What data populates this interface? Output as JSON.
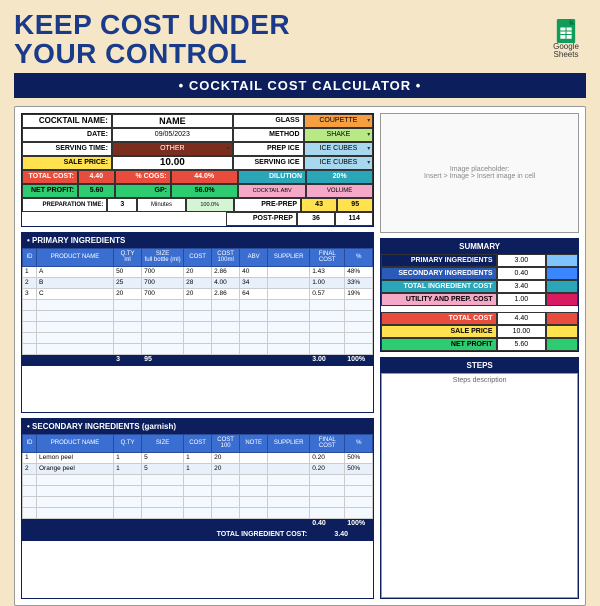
{
  "title_line1": "KEEP COST UNDER",
  "title_line2": "YOUR CONTROL",
  "sheets_label1": "Google",
  "sheets_label2": "Sheets",
  "subtitle": "• COCKTAIL COST CALCULATOR •",
  "header": {
    "cocktail_name_lbl": "COCKTAIL NAME:",
    "cocktail_name": "NAME",
    "date_lbl": "DATE:",
    "date": "09/05/2023",
    "serving_time_lbl": "SERVING TIME:",
    "serving_time": "OTHER",
    "sale_price_lbl": "SALE PRICE:",
    "sale_price": "10.00",
    "total_cost_lbl": "TOTAL COST:",
    "total_cost": "4.40",
    "cogs_lbl": "% COGS:",
    "cogs": "44.0%",
    "net_profit_lbl": "NET PROFIT:",
    "net_profit": "5.60",
    "gp_lbl": "GP:",
    "gp": "56.0%",
    "prep_time_lbl": "PREPARATION TIME:",
    "prep_time": "3",
    "prep_unit": "Minutes",
    "prep_pct": "100.0%",
    "glass_lbl": "GLASS",
    "glass": "COUPETTE",
    "method_lbl": "METHOD",
    "method": "SHAKE",
    "prep_ice_lbl": "PREP ICE",
    "prep_ice": "ICE CUBES",
    "serving_ice_lbl": "SERVING ICE",
    "serving_ice": "ICE CUBES",
    "dilution_lbl": "DILUTION",
    "dilution": "20%",
    "cocktail_abv_lbl": "COCKTAIL ABV",
    "volume_lbl": "VOLUME",
    "pre_prep_lbl": "PRE-PREP",
    "pre_prep_abv": "43",
    "pre_prep_vol": "95",
    "post_prep_lbl": "POST-PREP",
    "post_prep_abv": "36",
    "post_prep_vol": "114"
  },
  "colors": {
    "yellow": "#ffe24d",
    "red": "#e74c3c",
    "green": "#2ecc71",
    "orange": "#f59e42",
    "teal": "#2aa6b8",
    "ltblue": "#a8d8f0",
    "pink": "#f5a8c8",
    "lime": "#b8e986",
    "brown": "#7b2e1e",
    "navy": "#0c1e5c",
    "blue2": "#3a6ed1",
    "grey": "#d0d0d0",
    "ltgreen": "#d4f5d4"
  },
  "primary": {
    "title": "• PRIMARY INGREDIENTS",
    "cols": [
      "ID",
      "PRODUCT NAME",
      "Q.TY\nml",
      "SIZE\nfull bottle (ml)",
      "COST",
      "COST\n100ml",
      "ABV",
      "SUPPLIER",
      "FINAL COST",
      "%"
    ],
    "rows": [
      {
        "id": "1",
        "name": "A",
        "qty": "50",
        "size": "700",
        "cost": "20",
        "c100": "2.86",
        "abv": "40",
        "supp": "",
        "final": "1.43",
        "pct": "48%"
      },
      {
        "id": "2",
        "name": "B",
        "qty": "25",
        "size": "700",
        "cost": "28",
        "c100": "4.00",
        "abv": "34",
        "supp": "",
        "final": "1.00",
        "pct": "33%"
      },
      {
        "id": "3",
        "name": "C",
        "qty": "20",
        "size": "700",
        "cost": "20",
        "c100": "2.86",
        "abv": "64",
        "supp": "",
        "final": "0.57",
        "pct": "19%"
      }
    ],
    "footer_qty": "3",
    "footer_size": "95",
    "footer_final": "3.00",
    "footer_pct": "100%"
  },
  "secondary": {
    "title": "• SECONDARY INGREDIENTS (garnish)",
    "cols": [
      "ID",
      "PRODUCT NAME",
      "Q.TY",
      "SIZE",
      "COST",
      "COST\n100",
      "NOTE",
      "SUPPLIER",
      "FINAL COST",
      "%"
    ],
    "rows": [
      {
        "id": "1",
        "name": "Lemon peel",
        "qty": "1",
        "size": "5",
        "cost": "1",
        "c100": "20",
        "note": "",
        "supp": "",
        "final": "0.20",
        "pct": "50%"
      },
      {
        "id": "2",
        "name": "Orange peel",
        "qty": "1",
        "size": "5",
        "cost": "1",
        "c100": "20",
        "note": "",
        "supp": "",
        "final": "0.20",
        "pct": "50%"
      }
    ],
    "footer_final": "0.40",
    "footer_pct": "100%",
    "total_lbl": "TOTAL INGREDIENT COST:",
    "total_val": "3.40"
  },
  "img_placeholder": "Image placeholder:\nInsert > Image > Insert image in cell",
  "summary": {
    "title": "SUMMARY",
    "rows": [
      {
        "lbl": "PRIMARY INGREDIENTS",
        "val": "3.00",
        "bg": "#0c1e5c",
        "fg": "#fff",
        "bar": "#80c4ff"
      },
      {
        "lbl": "SECONDARY INGREDIENTS",
        "val": "0.40",
        "bg": "#2b5bb8",
        "fg": "#fff",
        "bar": "#3a86ff"
      },
      {
        "lbl": "TOTAL INGREDIENT COST",
        "val": "3.40",
        "bg": "#2aa6b8",
        "fg": "#fff",
        "bar": "#2aa6b8"
      },
      {
        "lbl": "UTILITY AND PREP. COST",
        "val": "1.00",
        "bg": "#f5a8c8",
        "fg": "#000",
        "bar": "#d81b60"
      }
    ],
    "totals": [
      {
        "lbl": "TOTAL COST",
        "val": "4.40",
        "bg": "#e74c3c",
        "fg": "#fff",
        "bar": "#e74c3c"
      },
      {
        "lbl": "SALE PRICE",
        "val": "10.00",
        "bg": "#ffe24d",
        "fg": "#000",
        "bar": "#ffe24d"
      },
      {
        "lbl": "NET PROFIT",
        "val": "5.60",
        "bg": "#2ecc71",
        "fg": "#000",
        "bar": "#2ecc71"
      }
    ]
  },
  "steps": {
    "title": "STEPS",
    "placeholder": "Steps description"
  }
}
